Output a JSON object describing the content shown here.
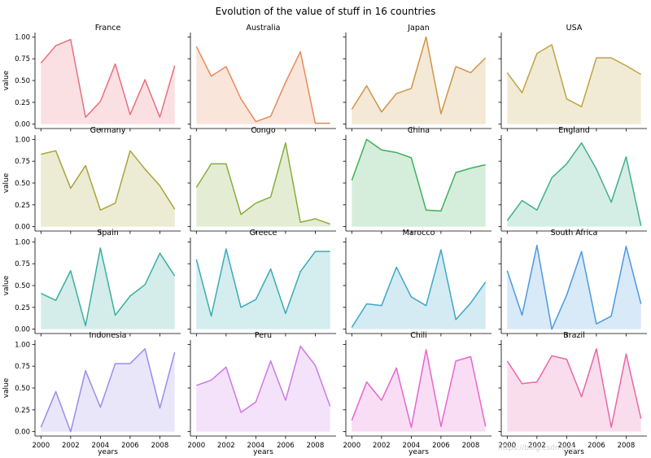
{
  "chart_data": {
    "type": "area",
    "title": "Evolution of the value of stuff in 16 countries",
    "xlabel": "years",
    "ylabel": "value",
    "x": [
      2000,
      2001,
      2002,
      2003,
      2004,
      2005,
      2006,
      2007,
      2008,
      2009
    ],
    "xticks": [
      2000,
      2002,
      2004,
      2006,
      2008
    ],
    "yticks": [
      0.0,
      0.25,
      0.5,
      0.75,
      1.0
    ],
    "ytick_labels": [
      "0.00",
      "0.25",
      "0.50",
      "0.75",
      "1.00"
    ],
    "ylim": [
      -0.05,
      1.05
    ],
    "xlim": [
      1999.6,
      2009.4
    ],
    "layout": "4x4 grid",
    "series": [
      {
        "name": "France",
        "color": "#e8707d",
        "values": [
          0.7,
          0.9,
          0.97,
          0.08,
          0.26,
          0.69,
          0.11,
          0.51,
          0.08,
          0.67
        ]
      },
      {
        "name": "Australia",
        "color": "#e88a5a",
        "values": [
          0.89,
          0.55,
          0.66,
          0.29,
          0.03,
          0.09,
          0.48,
          0.83,
          0.01,
          0.01
        ]
      },
      {
        "name": "Japan",
        "color": "#cf9544",
        "values": [
          0.17,
          0.44,
          0.14,
          0.35,
          0.41,
          1.0,
          0.12,
          0.66,
          0.59,
          0.76
        ]
      },
      {
        "name": "USA",
        "color": "#c1a23f",
        "values": [
          0.59,
          0.36,
          0.81,
          0.91,
          0.29,
          0.2,
          0.76,
          0.76,
          0.67,
          0.57
        ]
      },
      {
        "name": "Germany",
        "color": "#a8a43a",
        "values": [
          0.83,
          0.87,
          0.44,
          0.7,
          0.19,
          0.27,
          0.87,
          0.66,
          0.47,
          0.2
        ]
      },
      {
        "name": "Congo",
        "color": "#86ad3a",
        "values": [
          0.45,
          0.72,
          0.72,
          0.14,
          0.27,
          0.34,
          0.96,
          0.05,
          0.09,
          0.03
        ]
      },
      {
        "name": "China",
        "color": "#3fb05a",
        "values": [
          0.53,
          1.0,
          0.88,
          0.85,
          0.79,
          0.19,
          0.18,
          0.62,
          0.67,
          0.71
        ]
      },
      {
        "name": "England",
        "color": "#40b08a",
        "values": [
          0.07,
          0.3,
          0.19,
          0.56,
          0.72,
          0.96,
          0.66,
          0.28,
          0.8,
          0.01
        ]
      },
      {
        "name": "Spain",
        "color": "#3aaea0",
        "values": [
          0.41,
          0.33,
          0.67,
          0.04,
          0.93,
          0.16,
          0.38,
          0.51,
          0.87,
          0.61
        ]
      },
      {
        "name": "Greece",
        "color": "#3aabb7",
        "values": [
          0.8,
          0.15,
          0.92,
          0.25,
          0.34,
          0.69,
          0.18,
          0.66,
          0.89,
          0.89
        ]
      },
      {
        "name": "Marocco",
        "color": "#3da6c9",
        "values": [
          0.02,
          0.29,
          0.27,
          0.71,
          0.37,
          0.27,
          0.91,
          0.11,
          0.3,
          0.54
        ]
      },
      {
        "name": "South Africa",
        "color": "#4c99de",
        "values": [
          0.67,
          0.16,
          0.96,
          0.0,
          0.39,
          0.89,
          0.06,
          0.15,
          0.95,
          0.29
        ]
      },
      {
        "name": "Indonesia",
        "color": "#9b8de8",
        "values": [
          0.05,
          0.46,
          0.0,
          0.7,
          0.28,
          0.78,
          0.78,
          0.95,
          0.27,
          0.91
        ]
      },
      {
        "name": "Peru",
        "color": "#cc79e6",
        "values": [
          0.53,
          0.59,
          0.74,
          0.22,
          0.34,
          0.81,
          0.36,
          0.98,
          0.76,
          0.29
        ]
      },
      {
        "name": "Chili",
        "color": "#e566cf",
        "values": [
          0.13,
          0.57,
          0.36,
          0.73,
          0.05,
          0.94,
          0.06,
          0.81,
          0.86,
          0.06
        ]
      },
      {
        "name": "Brazil",
        "color": "#e866a8",
        "values": [
          0.81,
          0.55,
          0.57,
          0.87,
          0.83,
          0.4,
          0.95,
          0.05,
          0.89,
          0.15
        ]
      }
    ]
  },
  "watermark": "https://blog.csdn.net/..."
}
